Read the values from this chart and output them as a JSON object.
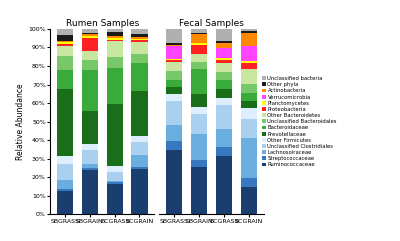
{
  "x_labels": [
    "SBGRASS",
    "SBGRAIN",
    "BCGRASS",
    "BCGRAIN",
    "SBGRASS",
    "SBGRAIN",
    "BCGRASS",
    "BCGRAIN"
  ],
  "legend_labels": [
    "Unclassified bacteria",
    "Other phyla",
    "Actinobacteria",
    "Verrucomicrobia",
    "Planctomycetes",
    "Proteobacteria",
    "Other Bacteroidetes",
    "Unclassified Bacteroidales",
    "Bacteroidaceae",
    "Prevotellaceae",
    "Other Firmicutes",
    "Unclassified Clostridiales",
    "Lachnosoiraceae",
    "Streptococcaceae",
    "Ruminococcaceae"
  ],
  "colors": [
    "#b0b0b0",
    "#1a1a1a",
    "#ff8800",
    "#ff44ff",
    "#ffff00",
    "#ff2222",
    "#c8e6a0",
    "#78c86a",
    "#3aaa3a",
    "#1a6e1a",
    "#ddeeff",
    "#aad0f0",
    "#6aaee0",
    "#3878c0",
    "#1a3e70"
  ],
  "data": [
    [
      3,
      2,
      2,
      3,
      8,
      2,
      7,
      1
    ],
    [
      3,
      1,
      2,
      2,
      1,
      1,
      1,
      1
    ],
    [
      1,
      1,
      1,
      1,
      1,
      5,
      3,
      6
    ],
    [
      0,
      0,
      0,
      0,
      7,
      0,
      6,
      7
    ],
    [
      1,
      1,
      1,
      1,
      1,
      1,
      1,
      1
    ],
    [
      1,
      7,
      1,
      1,
      1,
      5,
      2,
      3
    ],
    [
      5,
      5,
      9,
      7,
      5,
      4,
      5,
      7
    ],
    [
      7,
      5,
      6,
      6,
      5,
      4,
      5,
      4
    ],
    [
      10,
      22,
      20,
      17,
      4,
      14,
      5,
      4
    ],
    [
      35,
      18,
      35,
      27,
      4,
      7,
      5,
      3
    ],
    [
      4,
      3,
      3,
      4,
      4,
      4,
      4,
      5
    ],
    [
      8,
      8,
      5,
      8,
      14,
      11,
      14,
      9
    ],
    [
      5,
      2,
      1,
      7,
      9,
      14,
      11,
      19
    ],
    [
      1,
      1,
      1,
      1,
      5,
      4,
      5,
      4
    ],
    [
      12,
      24,
      17,
      28,
      37,
      26,
      34,
      13
    ]
  ],
  "ylabel": "Relative Abundance",
  "title_rumen": "Rumen Samples",
  "title_fecal": "Fecal Samples",
  "figsize": [
    4.0,
    2.41
  ],
  "dpi": 100
}
